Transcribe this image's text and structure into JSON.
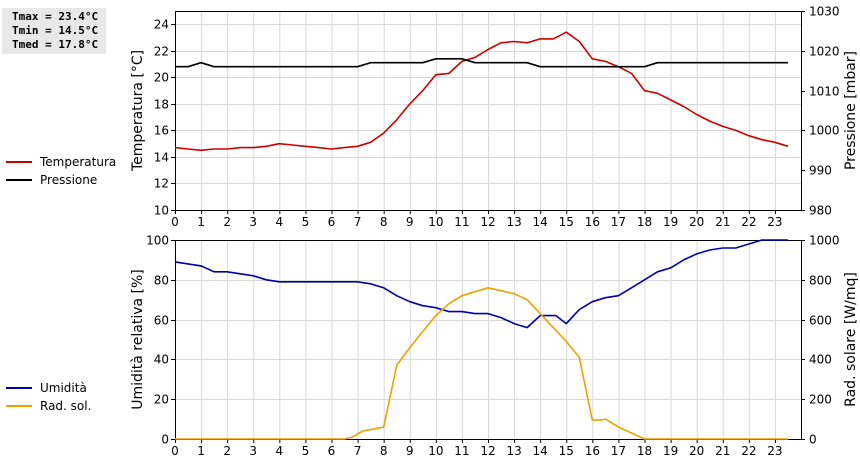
{
  "stats": {
    "tmax": "Tmax = 23.4°C",
    "tmin": "Tmin = 14.5°C",
    "tmed": "Tmed = 17.8°C"
  },
  "colors": {
    "temp": "#cc0000",
    "press": "#000000",
    "hum": "#0000aa",
    "rad": "#f0a000"
  },
  "chart_data": [
    {
      "type": "line",
      "xlabel": "",
      "ylabel": "Temperatura [°C]",
      "y2label": "Pressione [mbar]",
      "xlim": [
        0,
        24
      ],
      "xticks": [
        0,
        1,
        2,
        3,
        4,
        5,
        6,
        7,
        8,
        9,
        10,
        11,
        12,
        13,
        14,
        15,
        16,
        17,
        18,
        19,
        20,
        21,
        22,
        23
      ],
      "ylim": [
        10,
        25
      ],
      "yticks": [
        10,
        12,
        14,
        16,
        18,
        20,
        22,
        24
      ],
      "y2lim": [
        980,
        1030
      ],
      "y2ticks": [
        980,
        990,
        1000,
        1010,
        1020,
        1030
      ],
      "grid": true,
      "legend": [
        {
          "name": "Temperatura",
          "color": "#cc0000"
        },
        {
          "name": "Pressione",
          "color": "#000000"
        }
      ],
      "series": [
        {
          "name": "Temperatura",
          "axis": "left",
          "x": [
            0,
            0.5,
            1,
            1.5,
            2,
            2.5,
            3,
            3.5,
            4,
            4.5,
            5,
            5.5,
            6,
            6.5,
            7,
            7.5,
            8,
            8.5,
            9,
            9.5,
            10,
            10.5,
            11,
            11.5,
            12,
            12.5,
            13,
            13.5,
            14,
            14.5,
            15,
            15.5,
            16,
            16.5,
            17,
            17.5,
            18,
            18.5,
            19,
            19.5,
            20,
            20.5,
            21,
            21.5,
            22,
            22.5,
            23,
            23.5
          ],
          "y": [
            14.7,
            14.6,
            14.5,
            14.6,
            14.6,
            14.7,
            14.7,
            14.8,
            15.0,
            14.9,
            14.8,
            14.7,
            14.6,
            14.7,
            14.8,
            15.1,
            15.8,
            16.8,
            18.0,
            19.0,
            20.2,
            20.3,
            21.2,
            21.5,
            22.1,
            22.6,
            22.7,
            22.6,
            22.9,
            22.9,
            23.4,
            22.7,
            21.4,
            21.2,
            20.8,
            20.3,
            19.0,
            18.8,
            18.3,
            17.8,
            17.2,
            16.7,
            16.3,
            16.0,
            15.6,
            15.3,
            15.1,
            14.8
          ]
        },
        {
          "name": "Pressione",
          "axis": "right",
          "x": [
            0,
            0.5,
            1,
            1.5,
            2,
            2.5,
            3,
            3.5,
            4,
            4.5,
            5,
            5.5,
            6,
            6.5,
            7,
            7.5,
            8,
            8.5,
            9,
            9.5,
            10,
            10.5,
            11,
            11.5,
            12,
            12.5,
            13,
            13.5,
            14,
            14.5,
            15,
            15.5,
            16,
            16.5,
            17,
            17.5,
            18,
            18.5,
            19,
            19.5,
            20,
            20.5,
            21,
            21.5,
            22,
            22.5,
            23,
            23.5
          ],
          "y": [
            1016,
            1016,
            1017,
            1016,
            1016,
            1016,
            1016,
            1016,
            1016,
            1016,
            1016,
            1016,
            1016,
            1016,
            1016,
            1017,
            1017,
            1017,
            1017,
            1017,
            1018,
            1018,
            1018,
            1017,
            1017,
            1017,
            1017,
            1017,
            1016,
            1016,
            1016,
            1016,
            1016,
            1016,
            1016,
            1016,
            1016,
            1017,
            1017,
            1017,
            1017,
            1017,
            1017,
            1017,
            1017,
            1017,
            1017,
            1017
          ]
        }
      ]
    },
    {
      "type": "line",
      "xlabel": "",
      "ylabel": "Umidità relativa [%]",
      "y2label": "Rad. solare [W/mq]",
      "xlim": [
        0,
        24
      ],
      "xticks": [
        0,
        1,
        2,
        3,
        4,
        5,
        6,
        7,
        8,
        9,
        10,
        11,
        12,
        13,
        14,
        15,
        16,
        17,
        18,
        19,
        20,
        21,
        22,
        23
      ],
      "ylim": [
        0,
        100
      ],
      "yticks": [
        0,
        20,
        40,
        60,
        80,
        100
      ],
      "y2lim": [
        0,
        1000
      ],
      "y2ticks": [
        0,
        200,
        400,
        600,
        800,
        1000
      ],
      "grid": true,
      "legend": [
        {
          "name": "Umidità",
          "color": "#0000aa"
        },
        {
          "name": "Rad. sol.",
          "color": "#f0a000"
        }
      ],
      "series": [
        {
          "name": "Umidità",
          "axis": "left",
          "x": [
            0,
            0.5,
            1,
            1.5,
            2,
            2.5,
            3,
            3.5,
            4,
            4.5,
            5,
            5.5,
            6,
            6.5,
            7,
            7.5,
            8,
            8.5,
            9,
            9.5,
            10,
            10.5,
            11,
            11.5,
            12,
            12.5,
            13,
            13.5,
            14,
            14.3,
            14.6,
            15,
            15.5,
            16,
            16.5,
            17,
            17.5,
            18,
            18.5,
            19,
            19.5,
            20,
            20.5,
            21,
            21.5,
            22,
            22.5,
            23,
            23.5
          ],
          "y": [
            89,
            88,
            87,
            84,
            84,
            83,
            82,
            80,
            79,
            79,
            79,
            79,
            79,
            79,
            79,
            78,
            76,
            72,
            69,
            67,
            66,
            64,
            64,
            63,
            63,
            61,
            58,
            56,
            62,
            62,
            62,
            58,
            65,
            69,
            71,
            72,
            76,
            80,
            84,
            86,
            90,
            93,
            95,
            96,
            96,
            98,
            100,
            100,
            100
          ]
        },
        {
          "name": "Rad. sol.",
          "axis": "right",
          "x": [
            0,
            1,
            2,
            3,
            4,
            5,
            6,
            6.5,
            6.8,
            7.2,
            8,
            8.5,
            9,
            9.5,
            10,
            10.5,
            11,
            11.5,
            12,
            12.5,
            13,
            13.5,
            14,
            14.5,
            15,
            15.5,
            16,
            16.3,
            16.5,
            17,
            17.5,
            18,
            19,
            20,
            21,
            22,
            23,
            23.5
          ],
          "y": [
            0,
            0,
            0,
            0,
            0,
            0,
            0,
            0,
            10,
            40,
            60,
            370,
            460,
            540,
            620,
            680,
            720,
            740,
            760,
            745,
            730,
            700,
            630,
            560,
            490,
            410,
            95,
            95,
            100,
            60,
            30,
            0,
            0,
            0,
            0,
            0,
            0,
            0
          ]
        }
      ]
    }
  ]
}
